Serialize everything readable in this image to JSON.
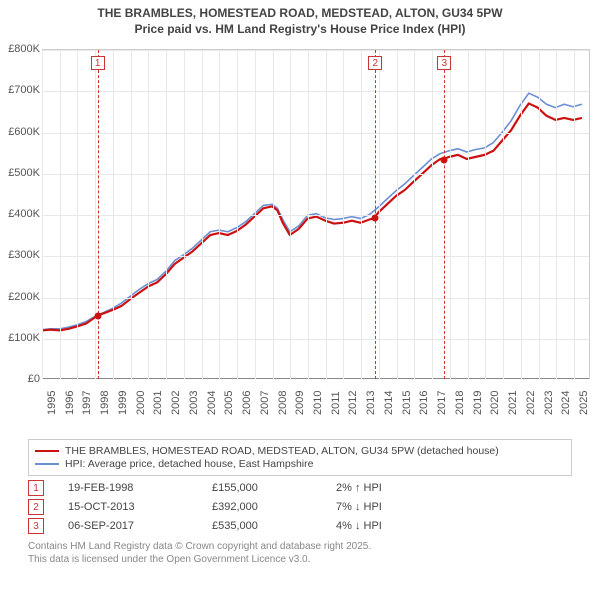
{
  "title_line1": "THE BRAMBLES, HOMESTEAD ROAD, MEDSTEAD, ALTON, GU34 5PW",
  "title_line2": "Price paid vs. HM Land Registry's House Price Index (HPI)",
  "chart": {
    "type": "line",
    "background_color": "#ffffff",
    "grid_color": "#e8e8e8",
    "axis_color": "#888888",
    "text_color": "#555555",
    "x_min_year": 1995,
    "x_max_year": 2025.9,
    "x_tick_years": [
      1995,
      1996,
      1997,
      1998,
      1999,
      2000,
      2001,
      2002,
      2003,
      2004,
      2005,
      2006,
      2007,
      2008,
      2009,
      2010,
      2011,
      2012,
      2013,
      2014,
      2015,
      2016,
      2017,
      2018,
      2019,
      2020,
      2021,
      2022,
      2023,
      2024,
      2025
    ],
    "y_min": 0,
    "y_max": 800,
    "y_ticks": [
      0,
      100,
      200,
      300,
      400,
      500,
      600,
      700,
      800
    ],
    "y_tick_labels": [
      "£0",
      "£100K",
      "£200K",
      "£300K",
      "£400K",
      "£500K",
      "£600K",
      "£700K",
      "£800K"
    ],
    "series": [
      {
        "name": "price_paid",
        "label": "THE BRAMBLES, HOMESTEAD ROAD, MEDSTEAD, ALTON, GU34 5PW (detached house)",
        "color": "#cc1111",
        "line_width": 2.2,
        "points": [
          [
            1995.0,
            118
          ],
          [
            1995.5,
            120
          ],
          [
            1996.0,
            118
          ],
          [
            1996.5,
            122
          ],
          [
            1997.0,
            128
          ],
          [
            1997.5,
            135
          ],
          [
            1998.0,
            150
          ],
          [
            1998.14,
            155
          ],
          [
            1998.5,
            160
          ],
          [
            1999.0,
            168
          ],
          [
            1999.5,
            178
          ],
          [
            2000.0,
            195
          ],
          [
            2000.5,
            210
          ],
          [
            2001.0,
            225
          ],
          [
            2001.5,
            235
          ],
          [
            2002.0,
            255
          ],
          [
            2002.5,
            280
          ],
          [
            2003.0,
            295
          ],
          [
            2003.5,
            310
          ],
          [
            2004.0,
            330
          ],
          [
            2004.5,
            350
          ],
          [
            2005.0,
            355
          ],
          [
            2005.5,
            350
          ],
          [
            2006.0,
            360
          ],
          [
            2006.5,
            375
          ],
          [
            2007.0,
            395
          ],
          [
            2007.5,
            415
          ],
          [
            2008.0,
            420
          ],
          [
            2008.3,
            410
          ],
          [
            2008.6,
            380
          ],
          [
            2009.0,
            350
          ],
          [
            2009.5,
            365
          ],
          [
            2010.0,
            390
          ],
          [
            2010.5,
            395
          ],
          [
            2011.0,
            385
          ],
          [
            2011.5,
            378
          ],
          [
            2012.0,
            380
          ],
          [
            2012.5,
            385
          ],
          [
            2013.0,
            380
          ],
          [
            2013.5,
            388
          ],
          [
            2013.79,
            392
          ],
          [
            2014.0,
            405
          ],
          [
            2014.5,
            425
          ],
          [
            2015.0,
            445
          ],
          [
            2015.5,
            460
          ],
          [
            2016.0,
            480
          ],
          [
            2016.5,
            500
          ],
          [
            2017.0,
            520
          ],
          [
            2017.5,
            535
          ],
          [
            2017.68,
            535
          ],
          [
            2018.0,
            540
          ],
          [
            2018.5,
            545
          ],
          [
            2019.0,
            535
          ],
          [
            2019.5,
            540
          ],
          [
            2020.0,
            545
          ],
          [
            2020.5,
            555
          ],
          [
            2021.0,
            580
          ],
          [
            2021.5,
            605
          ],
          [
            2022.0,
            640
          ],
          [
            2022.5,
            670
          ],
          [
            2023.0,
            660
          ],
          [
            2023.5,
            640
          ],
          [
            2024.0,
            630
          ],
          [
            2024.5,
            635
          ],
          [
            2025.0,
            630
          ],
          [
            2025.5,
            635
          ]
        ]
      },
      {
        "name": "hpi",
        "label": "HPI: Average price, detached house, East Hampshire",
        "color": "#6a8fd4",
        "line_width": 1.6,
        "points": [
          [
            1995.0,
            120
          ],
          [
            1995.5,
            122
          ],
          [
            1996.0,
            122
          ],
          [
            1996.5,
            126
          ],
          [
            1997.0,
            132
          ],
          [
            1997.5,
            140
          ],
          [
            1998.0,
            152
          ],
          [
            1998.5,
            162
          ],
          [
            1999.0,
            172
          ],
          [
            1999.5,
            185
          ],
          [
            2000.0,
            202
          ],
          [
            2000.5,
            218
          ],
          [
            2001.0,
            232
          ],
          [
            2001.5,
            242
          ],
          [
            2002.0,
            262
          ],
          [
            2002.5,
            288
          ],
          [
            2003.0,
            302
          ],
          [
            2003.5,
            318
          ],
          [
            2004.0,
            338
          ],
          [
            2004.5,
            358
          ],
          [
            2005.0,
            362
          ],
          [
            2005.5,
            358
          ],
          [
            2006.0,
            368
          ],
          [
            2006.5,
            382
          ],
          [
            2007.0,
            402
          ],
          [
            2007.5,
            422
          ],
          [
            2008.0,
            425
          ],
          [
            2008.3,
            415
          ],
          [
            2008.6,
            388
          ],
          [
            2009.0,
            358
          ],
          [
            2009.5,
            372
          ],
          [
            2010.0,
            398
          ],
          [
            2010.5,
            402
          ],
          [
            2011.0,
            392
          ],
          [
            2011.5,
            388
          ],
          [
            2012.0,
            390
          ],
          [
            2012.5,
            395
          ],
          [
            2013.0,
            390
          ],
          [
            2013.5,
            400
          ],
          [
            2014.0,
            418
          ],
          [
            2014.5,
            438
          ],
          [
            2015.0,
            458
          ],
          [
            2015.5,
            475
          ],
          [
            2016.0,
            495
          ],
          [
            2016.5,
            515
          ],
          [
            2017.0,
            535
          ],
          [
            2017.5,
            548
          ],
          [
            2018.0,
            555
          ],
          [
            2018.5,
            560
          ],
          [
            2019.0,
            552
          ],
          [
            2019.5,
            558
          ],
          [
            2020.0,
            562
          ],
          [
            2020.5,
            575
          ],
          [
            2021.0,
            600
          ],
          [
            2021.5,
            628
          ],
          [
            2022.0,
            665
          ],
          [
            2022.5,
            695
          ],
          [
            2023.0,
            685
          ],
          [
            2023.5,
            668
          ],
          [
            2024.0,
            660
          ],
          [
            2024.5,
            668
          ],
          [
            2025.0,
            662
          ],
          [
            2025.5,
            668
          ]
        ]
      }
    ],
    "sale_markers": [
      {
        "n": "1",
        "year": 1998.14,
        "value": 155
      },
      {
        "n": "2",
        "year": 2013.79,
        "value": 392
      },
      {
        "n": "3",
        "year": 2017.68,
        "value": 535
      }
    ]
  },
  "legend": {
    "border_color": "#cccccc"
  },
  "sales_table": [
    {
      "n": "1",
      "date": "19-FEB-1998",
      "price": "£155,000",
      "delta": "2% ↑ HPI"
    },
    {
      "n": "2",
      "date": "15-OCT-2013",
      "price": "£392,000",
      "delta": "7% ↓ HPI"
    },
    {
      "n": "3",
      "date": "06-SEP-2017",
      "price": "£535,000",
      "delta": "4% ↓ HPI"
    }
  ],
  "footer_line1": "Contains HM Land Registry data © Crown copyright and database right 2025.",
  "footer_line2": "This data is licensed under the Open Government Licence v3.0."
}
